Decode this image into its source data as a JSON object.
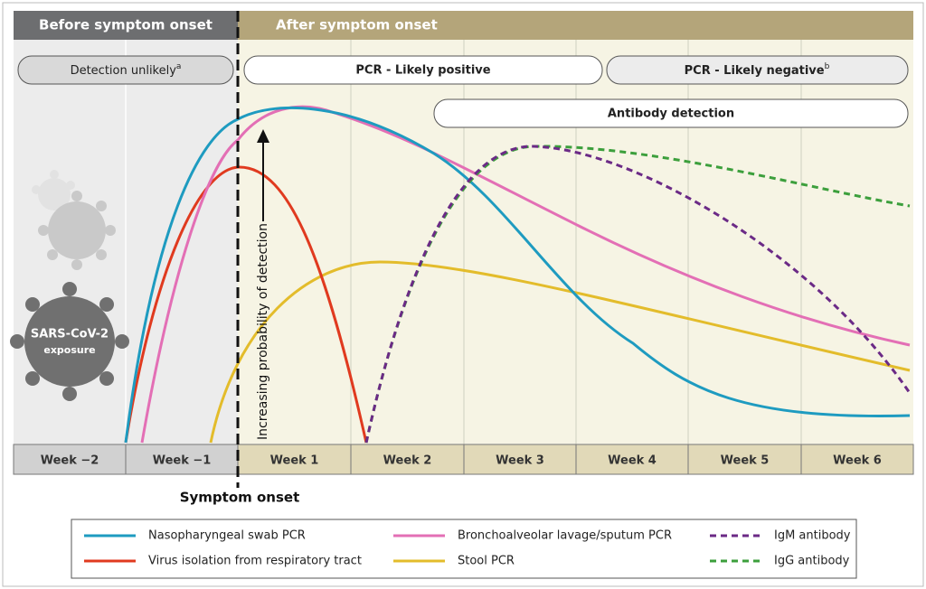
{
  "header": {
    "before": "Before symptom onset",
    "after": "After symptom onset"
  },
  "phases": {
    "detection_unlikely": {
      "label": "Detection unlikely",
      "note": "a"
    },
    "pcr_positive": {
      "label": "PCR - Likely positive"
    },
    "pcr_negative": {
      "label": "PCR - Likely negative",
      "note": "b"
    },
    "antibody": {
      "label": "Antibody detection"
    }
  },
  "weeks": [
    "Week −2",
    "Week −1",
    "Week 1",
    "Week 2",
    "Week 3",
    "Week 4",
    "Week 5",
    "Week 6"
  ],
  "y_axis_label": "Increasing probability of detection",
  "onset_label": "Symptom onset",
  "exposure": {
    "line1": "SARS-CoV-2",
    "line2": "exposure"
  },
  "legend": [
    "Nasopharyngeal swab PCR",
    "Virus isolation from respiratory tract",
    "Bronchoalveolar lavage/sputum PCR",
    "Stool PCR",
    "IgM antibody",
    "IgG antibody"
  ]
}
